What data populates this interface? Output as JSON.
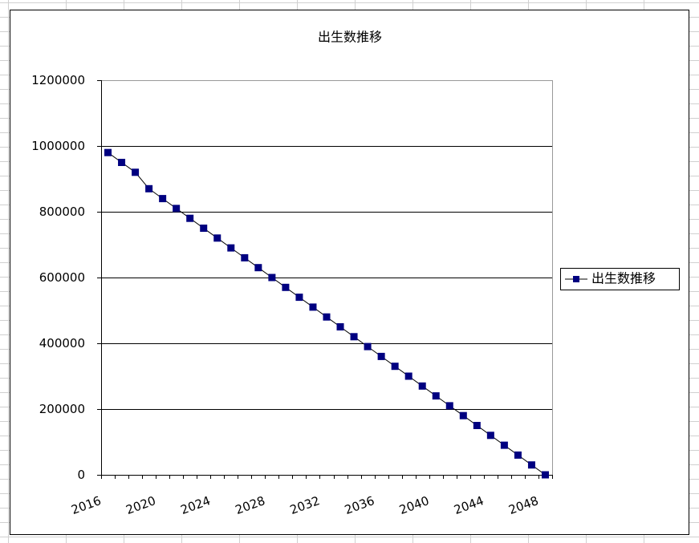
{
  "chart_data": {
    "type": "line",
    "title": "出生数推移",
    "categories": [
      "2016",
      null,
      null,
      null,
      "2020",
      null,
      null,
      null,
      "2024",
      null,
      null,
      null,
      "2028",
      null,
      null,
      null,
      "2032",
      null,
      null,
      null,
      "2036",
      null,
      null,
      null,
      "2040",
      null,
      null,
      null,
      "2044",
      null,
      null,
      null,
      "2048"
    ],
    "series": [
      {
        "name": "出生数推移",
        "color": "#000080",
        "values": [
          980000,
          950000,
          920000,
          870000,
          840000,
          810000,
          780000,
          750000,
          720000,
          690000,
          660000,
          630000,
          600000,
          570000,
          540000,
          510000,
          480000,
          450000,
          420000,
          390000,
          360000,
          330000,
          300000,
          270000,
          240000,
          210000,
          180000,
          150000,
          120000,
          90000,
          60000,
          30000,
          0
        ]
      }
    ],
    "ylim": [
      0,
      1200000
    ],
    "yticks": [
      0,
      200000,
      400000,
      600000,
      800000,
      1000000,
      1200000
    ],
    "grid": true,
    "legend": "right"
  }
}
